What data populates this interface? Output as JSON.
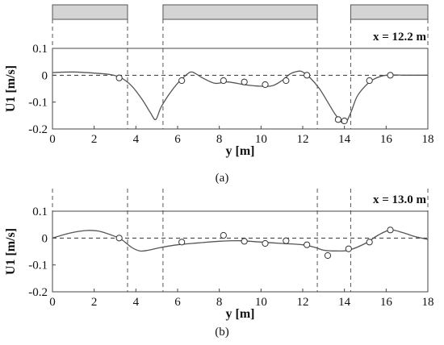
{
  "chart_data": [
    {
      "type": "line",
      "caption": "(a)",
      "annotation": "x = 12.2 m",
      "xlabel": "y [m]",
      "ylabel": "U1 [m/s]",
      "xlim": [
        0,
        18
      ],
      "ylim": [
        -0.2,
        0.1
      ],
      "xticks": [
        0,
        2,
        4,
        6,
        8,
        10,
        12,
        14,
        16,
        18
      ],
      "yticks": [
        0.1,
        0,
        -0.1,
        -0.2
      ],
      "ytick_labels": [
        "0.1",
        "0",
        "-0.1",
        "-0.2"
      ],
      "zero_line": true,
      "divider_lines": [
        3.6,
        5.3,
        12.7,
        14.3
      ],
      "bars": [
        [
          0,
          3.6
        ],
        [
          5.3,
          12.7
        ],
        [
          14.3,
          18
        ]
      ],
      "series": [
        {
          "kind": "model-curve",
          "x": [
            0,
            1.0,
            2.0,
            2.8,
            3.3,
            3.8,
            4.3,
            4.7,
            4.95,
            5.2,
            5.6,
            6.0,
            6.4,
            6.7,
            7.2,
            7.8,
            8.4,
            9.2,
            9.8,
            10.5,
            11.0,
            11.4,
            11.8,
            12.0,
            12.3,
            12.8,
            13.2,
            13.6,
            14.0,
            14.3,
            14.6,
            15.0,
            15.4,
            16.0,
            17.0,
            18.0
          ],
          "y": [
            0.01,
            0.012,
            0.008,
            0.002,
            -0.01,
            -0.04,
            -0.09,
            -0.14,
            -0.165,
            -0.12,
            -0.07,
            -0.03,
            0.0,
            0.012,
            -0.01,
            -0.03,
            -0.025,
            -0.035,
            -0.04,
            -0.04,
            -0.02,
            0.005,
            0.015,
            0.012,
            -0.005,
            -0.05,
            -0.1,
            -0.15,
            -0.18,
            -0.14,
            -0.08,
            -0.04,
            -0.015,
            0.0,
            0.0,
            0.0
          ]
        },
        {
          "kind": "measurements",
          "x": [
            3.2,
            6.2,
            8.2,
            9.2,
            10.2,
            11.2,
            12.2,
            13.7,
            14.0,
            15.2,
            16.2
          ],
          "y": [
            -0.01,
            -0.02,
            -0.02,
            -0.025,
            -0.035,
            -0.02,
            0.0,
            -0.165,
            -0.17,
            -0.02,
            0.0
          ]
        }
      ]
    },
    {
      "type": "line",
      "caption": "(b)",
      "annotation": "x = 13.0 m",
      "xlabel": "y [m]",
      "ylabel": "U1 [m/s]",
      "xlim": [
        0,
        18
      ],
      "ylim": [
        -0.2,
        0.1
      ],
      "xticks": [
        0,
        2,
        4,
        6,
        8,
        10,
        12,
        14,
        16,
        18
      ],
      "yticks": [
        0.1,
        0,
        -0.1,
        -0.2
      ],
      "ytick_labels": [
        "0.1",
        "0",
        "-0.1",
        "-0.2"
      ],
      "zero_line": true,
      "divider_lines": [
        3.6,
        5.3,
        12.7,
        14.3
      ],
      "bars": [],
      "series": [
        {
          "kind": "model-curve",
          "x": [
            0,
            0.8,
            1.6,
            2.2,
            2.8,
            3.3,
            3.8,
            4.2,
            4.6,
            5.2,
            6.0,
            7.0,
            8.0,
            9.0,
            10.0,
            11.0,
            12.0,
            12.6,
            13.0,
            13.6,
            14.2,
            15.0,
            15.6,
            16.2,
            16.8,
            17.4,
            18.0
          ],
          "y": [
            0.0,
            0.018,
            0.028,
            0.026,
            0.012,
            -0.005,
            -0.035,
            -0.048,
            -0.045,
            -0.035,
            -0.025,
            -0.018,
            -0.012,
            -0.01,
            -0.015,
            -0.02,
            -0.025,
            -0.035,
            -0.045,
            -0.048,
            -0.045,
            -0.02,
            0.01,
            0.03,
            0.02,
            0.005,
            -0.005
          ]
        },
        {
          "kind": "measurements",
          "x": [
            3.2,
            6.2,
            8.2,
            9.2,
            10.2,
            11.2,
            12.2,
            13.2,
            14.2,
            15.2,
            16.2
          ],
          "y": [
            0.0,
            -0.015,
            0.01,
            -0.012,
            -0.02,
            -0.01,
            -0.025,
            -0.065,
            -0.04,
            -0.015,
            0.03
          ]
        }
      ]
    }
  ]
}
